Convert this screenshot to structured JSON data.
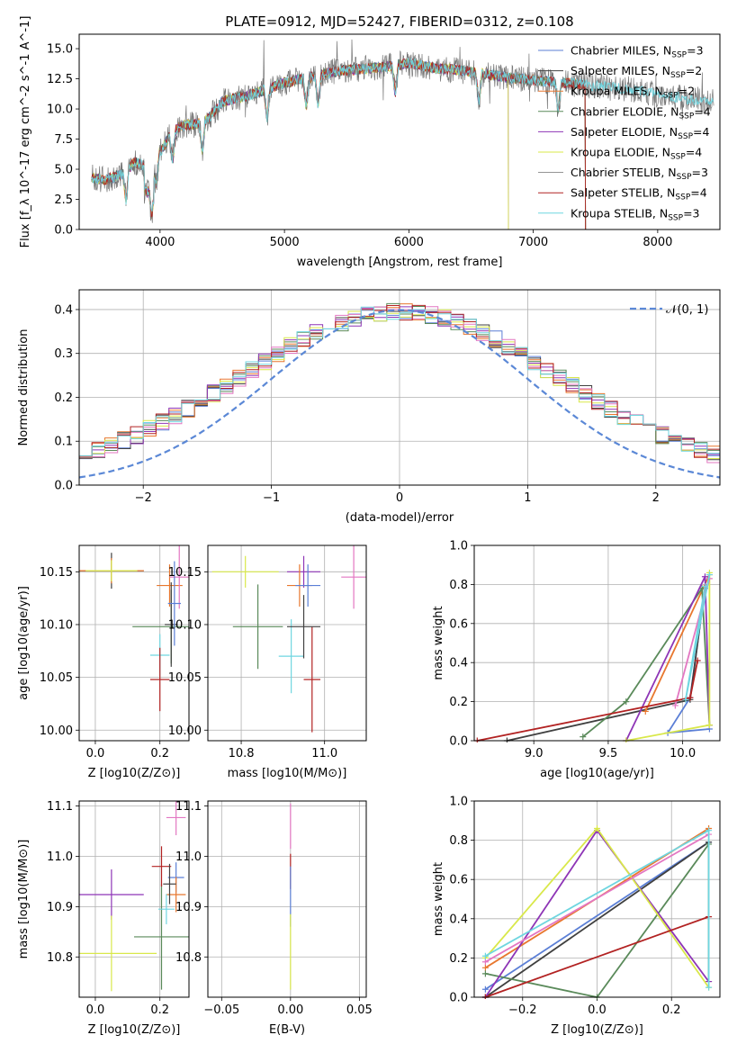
{
  "figure": {
    "title": "PLATE=0912, MJD=52427, FIBERID=0312, z=0.108"
  },
  "chart_data": [
    {
      "id": "spectrum",
      "type": "line",
      "xlabel": "wavelength [Angstrom, rest frame]",
      "ylabel": "Flux [f_λ 10^-17 erg cm^-2 s^-1 A^-1]",
      "xlim": [
        3350,
        8500
      ],
      "ylim": [
        0,
        16.2
      ],
      "xticks": [
        "4000",
        "5000",
        "6000",
        "7000",
        "8000"
      ],
      "xtick_values": [
        4000,
        5000,
        6000,
        7000,
        8000
      ],
      "yticks": [
        "0.0",
        "2.5",
        "5.0",
        "7.5",
        "10.0",
        "12.5",
        "15.0"
      ],
      "ytick_values": [
        0,
        2.5,
        5,
        7.5,
        10,
        12.5,
        15
      ],
      "grid": false,
      "legend_position": "right",
      "continuum": [
        [
          3450,
          4.3
        ],
        [
          3560,
          4.1
        ],
        [
          3700,
          4.6
        ],
        [
          3800,
          5.6
        ],
        [
          3900,
          5.1
        ],
        [
          4000,
          6.4
        ],
        [
          4100,
          8.1
        ],
        [
          4200,
          8.7
        ],
        [
          4300,
          8.7
        ],
        [
          4400,
          9.3
        ],
        [
          4500,
          10.6
        ],
        [
          4600,
          10.9
        ],
        [
          4700,
          11.1
        ],
        [
          4800,
          11.4
        ],
        [
          4900,
          11.8
        ],
        [
          5000,
          12.2
        ],
        [
          5200,
          12.6
        ],
        [
          5400,
          13.1
        ],
        [
          5600,
          13.3
        ],
        [
          5800,
          13.5
        ],
        [
          6000,
          13.8
        ],
        [
          6200,
          13.4
        ],
        [
          6400,
          13.2
        ],
        [
          6600,
          12.9
        ],
        [
          6800,
          12.6
        ],
        [
          7000,
          12.4
        ],
        [
          7200,
          12.2
        ],
        [
          7420,
          12.0
        ],
        [
          7600,
          11.8
        ],
        [
          7800,
          11.6
        ],
        [
          8000,
          11.2
        ],
        [
          8200,
          10.9
        ],
        [
          8450,
          10.6
        ]
      ],
      "series": [
        {
          "name": "Chabrier MILES, N_SSP=3",
          "color": "#5b7fd6",
          "range": [
            3450,
            7420
          ],
          "style": "model",
          "label_main": "Chabrier MILES, N",
          "label_sub": "SSP",
          "label_tail": "=3"
        },
        {
          "name": "Salpeter MILES, N_SSP=2",
          "color": "#404040",
          "range": [
            3450,
            7420
          ],
          "style": "model",
          "label_main": "Salpeter MILES, N",
          "label_sub": "SSP",
          "label_tail": "=2"
        },
        {
          "name": "Kroupa MILES, N_SSP=2",
          "color": "#e8772e",
          "range": [
            3450,
            7420
          ],
          "style": "model",
          "label_main": "Kroupa MILES, N",
          "label_sub": "SSP",
          "label_tail": "=2"
        },
        {
          "name": "Chabrier ELODIE, N_SSP=4",
          "color": "#5a8a5a",
          "range": [
            3450,
            7420
          ],
          "style": "model",
          "label_main": "Chabrier ELODIE, N",
          "label_sub": "SSP",
          "label_tail": "=4"
        },
        {
          "name": "Salpeter ELODIE, N_SSP=4",
          "color": "#8e35b6",
          "range": [
            3450,
            6800
          ],
          "style": "model",
          "label_main": "Salpeter ELODIE, N",
          "label_sub": "SSP",
          "label_tail": "=4"
        },
        {
          "name": "Kroupa ELODIE, N_SSP=4",
          "color": "#d9e84a",
          "range": [
            3450,
            6800
          ],
          "style": "model",
          "label_main": "Kroupa ELODIE, N",
          "label_sub": "SSP",
          "label_tail": "=4"
        },
        {
          "name": "Chabrier STELIB, N_SSP=3",
          "color": "#707070",
          "range": [
            3450,
            8450
          ],
          "style": "data",
          "label_main": "Chabrier STELIB, N",
          "label_sub": "SSP",
          "label_tail": "=3"
        },
        {
          "name": "Salpeter STELIB, N_SSP=4",
          "color": "#b22222",
          "range": [
            3450,
            7420
          ],
          "style": "model",
          "label_main": "Salpeter STELIB, N",
          "label_sub": "SSP",
          "label_tail": "=4"
        },
        {
          "name": "Kroupa STELIB, N_SSP=3",
          "color": "#6fd6e0",
          "range": [
            3450,
            8450
          ],
          "style": "model",
          "label_main": "Kroupa STELIB, N",
          "label_sub": "SSP",
          "label_tail": "=3"
        }
      ]
    },
    {
      "id": "residuals",
      "type": "line",
      "xlabel": "(data-model)/error",
      "ylabel": "Normed distribution",
      "xlim": [
        -2.5,
        2.5
      ],
      "ylim": [
        0,
        0.445
      ],
      "xticks": [
        "−2",
        "−1",
        "0",
        "1",
        "2"
      ],
      "xtick_values": [
        -2,
        -1,
        0,
        1,
        2
      ],
      "yticks": [
        "0.0",
        "0.1",
        "0.2",
        "0.3",
        "0.4"
      ],
      "ytick_values": [
        0,
        0.1,
        0.2,
        0.3,
        0.4
      ],
      "grid": true,
      "legend_position": "top-right",
      "legend": "𝒩(0, 1)",
      "reference_color": "#5b88d6",
      "bin_width": 0.1,
      "bin_start": -2.5,
      "colors": [
        "#5b7fd6",
        "#404040",
        "#e8772e",
        "#5a8a5a",
        "#8e35b6",
        "#d9e84a",
        "#e377c2",
        "#b22222",
        "#6fd6e0"
      ]
    },
    {
      "id": "age-vs-Z",
      "type": "scatter",
      "xlabel": "Z [log10(Z/Z⊙)]",
      "ylabel": "age  [log10(age/yr)]",
      "xlim": [
        -0.05,
        0.29
      ],
      "ylim": [
        9.99,
        10.175
      ],
      "xticks": [
        "0.0",
        "0.2"
      ],
      "xtick_values": [
        0,
        0.2
      ],
      "yticks": [
        "10.00",
        "10.05",
        "10.10",
        "10.15"
      ],
      "ytick_values": [
        10.0,
        10.05,
        10.1,
        10.15
      ],
      "grid": true,
      "points": [
        {
          "x": 0.05,
          "y": 10.151,
          "xerr": 0.1,
          "yerr": 0.017,
          "color": "#404040"
        },
        {
          "x": 0.05,
          "y": 10.151,
          "xerr": 0.1,
          "yerr": 0.012,
          "color": "#e8772e"
        },
        {
          "x": 0.05,
          "y": 10.151,
          "xerr": 0.08,
          "yerr": 0.01,
          "color": "#d9e84a"
        },
        {
          "x": 0.23,
          "y": 10.137,
          "xerr": 0.04,
          "yerr": 0.02,
          "color": "#e8772e"
        },
        {
          "x": 0.26,
          "y": 10.145,
          "xerr": 0.03,
          "yerr": 0.03,
          "color": "#e377c2"
        },
        {
          "x": 0.235,
          "y": 10.098,
          "xerr": 0.12,
          "yerr": 0.035,
          "color": "#5a8a5a"
        },
        {
          "x": 0.2,
          "y": 10.071,
          "xerr": 0.03,
          "yerr": 0.02,
          "color": "#6fd6e0"
        },
        {
          "x": 0.2,
          "y": 10.048,
          "xerr": 0.03,
          "yerr": 0.03,
          "color": "#b22222"
        },
        {
          "x": 0.235,
          "y": 10.1,
          "xerr": 0.02,
          "yerr": 0.04,
          "color": "#404040"
        },
        {
          "x": 0.245,
          "y": 10.12,
          "xerr": 0.02,
          "yerr": 0.04,
          "color": "#5b7fd6"
        }
      ]
    },
    {
      "id": "age-vs-mass",
      "type": "scatter",
      "xlabel": "mass [log10(M/M⊙)]",
      "ylabel": "",
      "xlim": [
        10.72,
        11.1
      ],
      "ylim": [
        9.99,
        10.175
      ],
      "xticks": [
        "10.8",
        "11.0"
      ],
      "xtick_values": [
        10.8,
        11.0
      ],
      "yticks": [
        "10.00",
        "10.05",
        "10.10",
        "10.15"
      ],
      "ytick_values": [
        10.0,
        10.05,
        10.1,
        10.15
      ],
      "grid": true,
      "points": [
        {
          "x": 10.81,
          "y": 10.15,
          "xerr": 0.08,
          "yerr": 0.015,
          "color": "#d9e84a"
        },
        {
          "x": 10.95,
          "y": 10.15,
          "xerr": 0.04,
          "yerr": 0.015,
          "color": "#8e35b6"
        },
        {
          "x": 10.94,
          "y": 10.137,
          "xerr": 0.03,
          "yerr": 0.02,
          "color": "#e8772e"
        },
        {
          "x": 10.96,
          "y": 10.137,
          "xerr": 0.03,
          "yerr": 0.02,
          "color": "#5b7fd6"
        },
        {
          "x": 11.07,
          "y": 10.145,
          "xerr": 0.03,
          "yerr": 0.03,
          "color": "#e377c2"
        },
        {
          "x": 10.84,
          "y": 10.098,
          "xerr": 0.06,
          "yerr": 0.04,
          "color": "#5a8a5a"
        },
        {
          "x": 10.92,
          "y": 10.07,
          "xerr": 0.03,
          "yerr": 0.035,
          "color": "#6fd6e0"
        },
        {
          "x": 10.97,
          "y": 10.048,
          "xerr": 0.02,
          "yerr": 0.05,
          "color": "#b22222"
        },
        {
          "x": 10.95,
          "y": 10.098,
          "xerr": 0.04,
          "yerr": 0.03,
          "color": "#404040"
        }
      ]
    },
    {
      "id": "massweight-vs-age",
      "type": "line",
      "xlabel": "age  [log10(age/yr)]",
      "ylabel": "mass weight",
      "xlim": [
        8.6,
        10.25
      ],
      "ylim": [
        0,
        1.0
      ],
      "xticks": [
        "9.0",
        "9.5",
        "10.0"
      ],
      "xtick_values": [
        9.0,
        9.5,
        10.0
      ],
      "yticks": [
        "0.0",
        "0.2",
        "0.4",
        "0.6",
        "0.8",
        "1.0"
      ],
      "ytick_values": [
        0,
        0.2,
        0.4,
        0.6,
        0.8,
        1.0
      ],
      "grid": true,
      "series": [
        {
          "color": "#5b7fd6",
          "points": [
            [
              10.15,
              0.78
            ],
            [
              10.05,
              0.22
            ],
            [
              9.9,
              0.04
            ],
            [
              10.18,
              0.06
            ]
          ]
        },
        {
          "color": "#404040",
          "points": [
            [
              8.82,
              0.0
            ],
            [
              10.05,
              0.21
            ],
            [
              10.15,
              0.79
            ]
          ]
        },
        {
          "color": "#e8772e",
          "points": [
            [
              9.75,
              0.15
            ],
            [
              10.18,
              0.85
            ]
          ]
        },
        {
          "color": "#5a8a5a",
          "points": [
            [
              9.33,
              0.02
            ],
            [
              9.62,
              0.2
            ],
            [
              10.13,
              0.78
            ],
            [
              10.18,
              0.08
            ]
          ]
        },
        {
          "color": "#8e35b6",
          "points": [
            [
              9.62,
              0.0
            ],
            [
              10.15,
              0.84
            ],
            [
              10.18,
              0.08
            ]
          ]
        },
        {
          "color": "#d9e84a",
          "points": [
            [
              9.62,
              0.0
            ],
            [
              10.18,
              0.08
            ],
            [
              10.18,
              0.86
            ]
          ]
        },
        {
          "color": "#e377c2",
          "points": [
            [
              9.95,
              0.18
            ],
            [
              10.18,
              0.83
            ]
          ]
        },
        {
          "color": "#b22222",
          "points": [
            [
              8.62,
              0.0
            ],
            [
              10.05,
              0.22
            ],
            [
              10.1,
              0.41
            ]
          ]
        },
        {
          "color": "#6fd6e0",
          "points": [
            [
              10.15,
              0.79
            ],
            [
              10.02,
              0.21
            ],
            [
              10.18,
              0.85
            ]
          ]
        }
      ]
    },
    {
      "id": "mass-vs-Z",
      "type": "scatter",
      "xlabel": "Z [log10(Z/Z⊙)]",
      "ylabel": "mass [log10(M/M⊙)]",
      "xlim": [
        -0.05,
        0.29
      ],
      "ylim": [
        10.72,
        11.11
      ],
      "xticks": [
        "0.0",
        "0.2"
      ],
      "xtick_values": [
        0,
        0.2
      ],
      "yticks": [
        "10.8",
        "10.9",
        "11.0",
        "11.1"
      ],
      "ytick_values": [
        10.8,
        10.9,
        11.0,
        11.1
      ],
      "grid": true,
      "points": [
        {
          "x": 0.05,
          "y": 10.924,
          "xerr": 0.1,
          "yerr": 0.05,
          "color": "#8e35b6"
        },
        {
          "x": 0.05,
          "y": 10.807,
          "xerr": 0.14,
          "yerr": 0.075,
          "color": "#d9e84a"
        },
        {
          "x": 0.205,
          "y": 10.84,
          "xerr": 0.085,
          "yerr": 0.105,
          "color": "#5a8a5a"
        },
        {
          "x": 0.25,
          "y": 11.077,
          "xerr": 0.03,
          "yerr": 0.035,
          "color": "#e377c2"
        },
        {
          "x": 0.205,
          "y": 10.98,
          "xerr": 0.03,
          "yerr": 0.04,
          "color": "#b22222"
        },
        {
          "x": 0.25,
          "y": 10.958,
          "xerr": 0.025,
          "yerr": 0.03,
          "color": "#5b7fd6"
        },
        {
          "x": 0.25,
          "y": 10.924,
          "xerr": 0.03,
          "yerr": 0.035,
          "color": "#e8772e"
        },
        {
          "x": 0.22,
          "y": 10.895,
          "xerr": 0.025,
          "yerr": 0.03,
          "color": "#6fd6e0"
        },
        {
          "x": 0.23,
          "y": 10.945,
          "xerr": 0.02,
          "yerr": 0.04,
          "color": "#404040"
        }
      ]
    },
    {
      "id": "mass-vs-EBV",
      "type": "scatter",
      "xlabel": "E(B-V)",
      "ylabel": "",
      "xlim": [
        -0.06,
        0.055
      ],
      "ylim": [
        10.72,
        11.11
      ],
      "xticks": [
        "−0.05",
        "0.00",
        "0.05"
      ],
      "xtick_values": [
        -0.05,
        0.0,
        0.05
      ],
      "yticks": [
        "10.8",
        "10.9",
        "11.0",
        "11.1"
      ],
      "ytick_values": [
        10.8,
        10.9,
        11.0,
        11.1
      ],
      "grid": true,
      "points": [
        {
          "x": 0.0,
          "y": 11.06,
          "xerr": 0,
          "yerr": 0.045,
          "color": "#e377c2"
        },
        {
          "x": 0.0,
          "y": 10.97,
          "xerr": 0,
          "yerr": 0.035,
          "color": "#b22222"
        },
        {
          "x": 0.0,
          "y": 10.92,
          "xerr": 0,
          "yerr": 0.06,
          "color": "#5b7fd6"
        },
        {
          "x": 0.0,
          "y": 10.81,
          "xerr": 0,
          "yerr": 0.075,
          "color": "#d9e84a"
        }
      ]
    },
    {
      "id": "massweight-vs-Z",
      "type": "line",
      "xlabel": "Z [log10(Z/Z⊙)]",
      "ylabel": "mass weight",
      "xlim": [
        -0.33,
        0.33
      ],
      "ylim": [
        0,
        1.0
      ],
      "xticks": [
        "−0.2",
        "0.0",
        "0.2"
      ],
      "xtick_values": [
        -0.2,
        0.0,
        0.2
      ],
      "yticks": [
        "0.0",
        "0.2",
        "0.4",
        "0.6",
        "0.8",
        "1.0"
      ],
      "ytick_values": [
        0,
        0.2,
        0.4,
        0.6,
        0.8,
        1.0
      ],
      "grid": true,
      "series": [
        {
          "color": "#5b7fd6",
          "points": [
            [
              -0.3,
              0.04
            ],
            [
              0.3,
              0.79
            ]
          ]
        },
        {
          "color": "#404040",
          "points": [
            [
              -0.3,
              0.0
            ],
            [
              0.3,
              0.79
            ]
          ]
        },
        {
          "color": "#e8772e",
          "points": [
            [
              -0.3,
              0.15
            ],
            [
              0.3,
              0.86
            ]
          ]
        },
        {
          "color": "#5a8a5a",
          "points": [
            [
              -0.3,
              0.12
            ],
            [
              0.0,
              0.0
            ],
            [
              0.3,
              0.78
            ],
            [
              0.3,
              0.08
            ]
          ]
        },
        {
          "color": "#8e35b6",
          "points": [
            [
              -0.3,
              0.0
            ],
            [
              0.0,
              0.85
            ],
            [
              0.3,
              0.08
            ]
          ]
        },
        {
          "color": "#d9e84a",
          "points": [
            [
              -0.3,
              0.2
            ],
            [
              0.0,
              0.86
            ],
            [
              0.3,
              0.05
            ]
          ]
        },
        {
          "color": "#e377c2",
          "points": [
            [
              -0.3,
              0.18
            ],
            [
              0.3,
              0.83
            ]
          ]
        },
        {
          "color": "#b22222",
          "points": [
            [
              -0.3,
              0.0
            ],
            [
              0.3,
              0.41
            ]
          ]
        },
        {
          "color": "#6fd6e0",
          "points": [
            [
              -0.3,
              0.21
            ],
            [
              0.3,
              0.85
            ],
            [
              0.3,
              0.05
            ]
          ]
        }
      ]
    }
  ]
}
